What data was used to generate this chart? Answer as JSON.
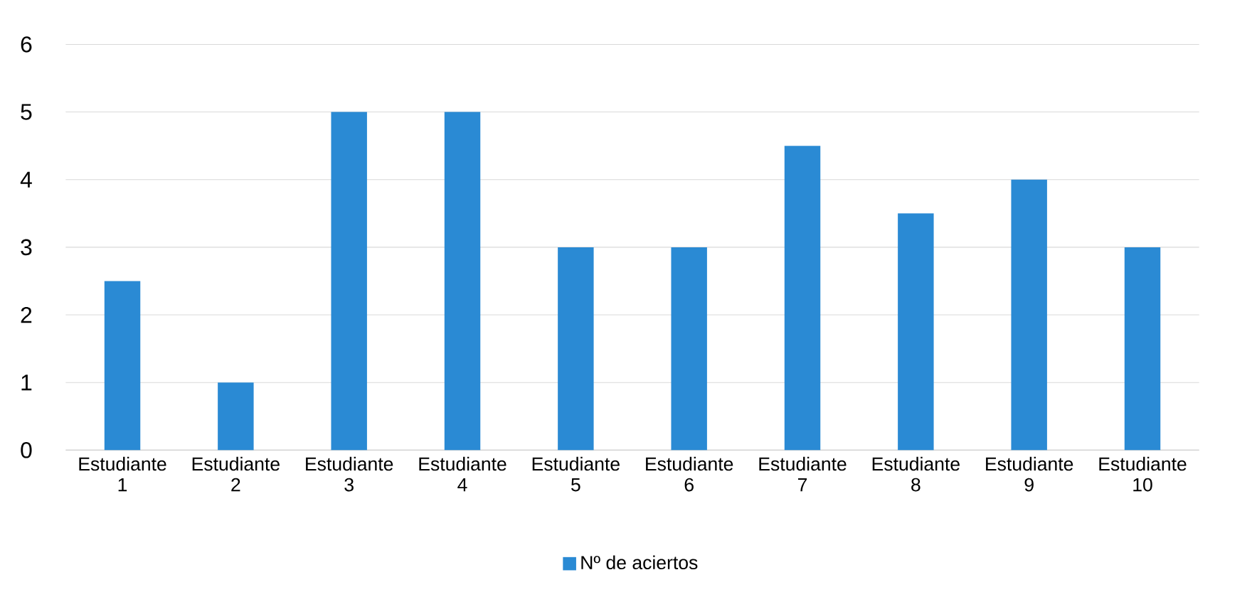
{
  "chart_data": {
    "type": "bar",
    "categories": [
      "Estudiante 1",
      "Estudiante 2",
      "Estudiante 3",
      "Estudiante 4",
      "Estudiante 5",
      "Estudiante 6",
      "Estudiante 7",
      "Estudiante 8",
      "Estudiante 9",
      "Estudiante 10"
    ],
    "series": [
      {
        "name": "Nº de aciertos",
        "color": "#2a8ad4",
        "values": [
          2.5,
          1,
          5,
          5,
          3,
          3,
          4.5,
          3.5,
          4,
          3
        ]
      }
    ],
    "ylim": [
      0,
      6
    ],
    "yticks": [
      0,
      1,
      2,
      3,
      4,
      5,
      6
    ],
    "grid": "y",
    "legend": "bottom"
  }
}
